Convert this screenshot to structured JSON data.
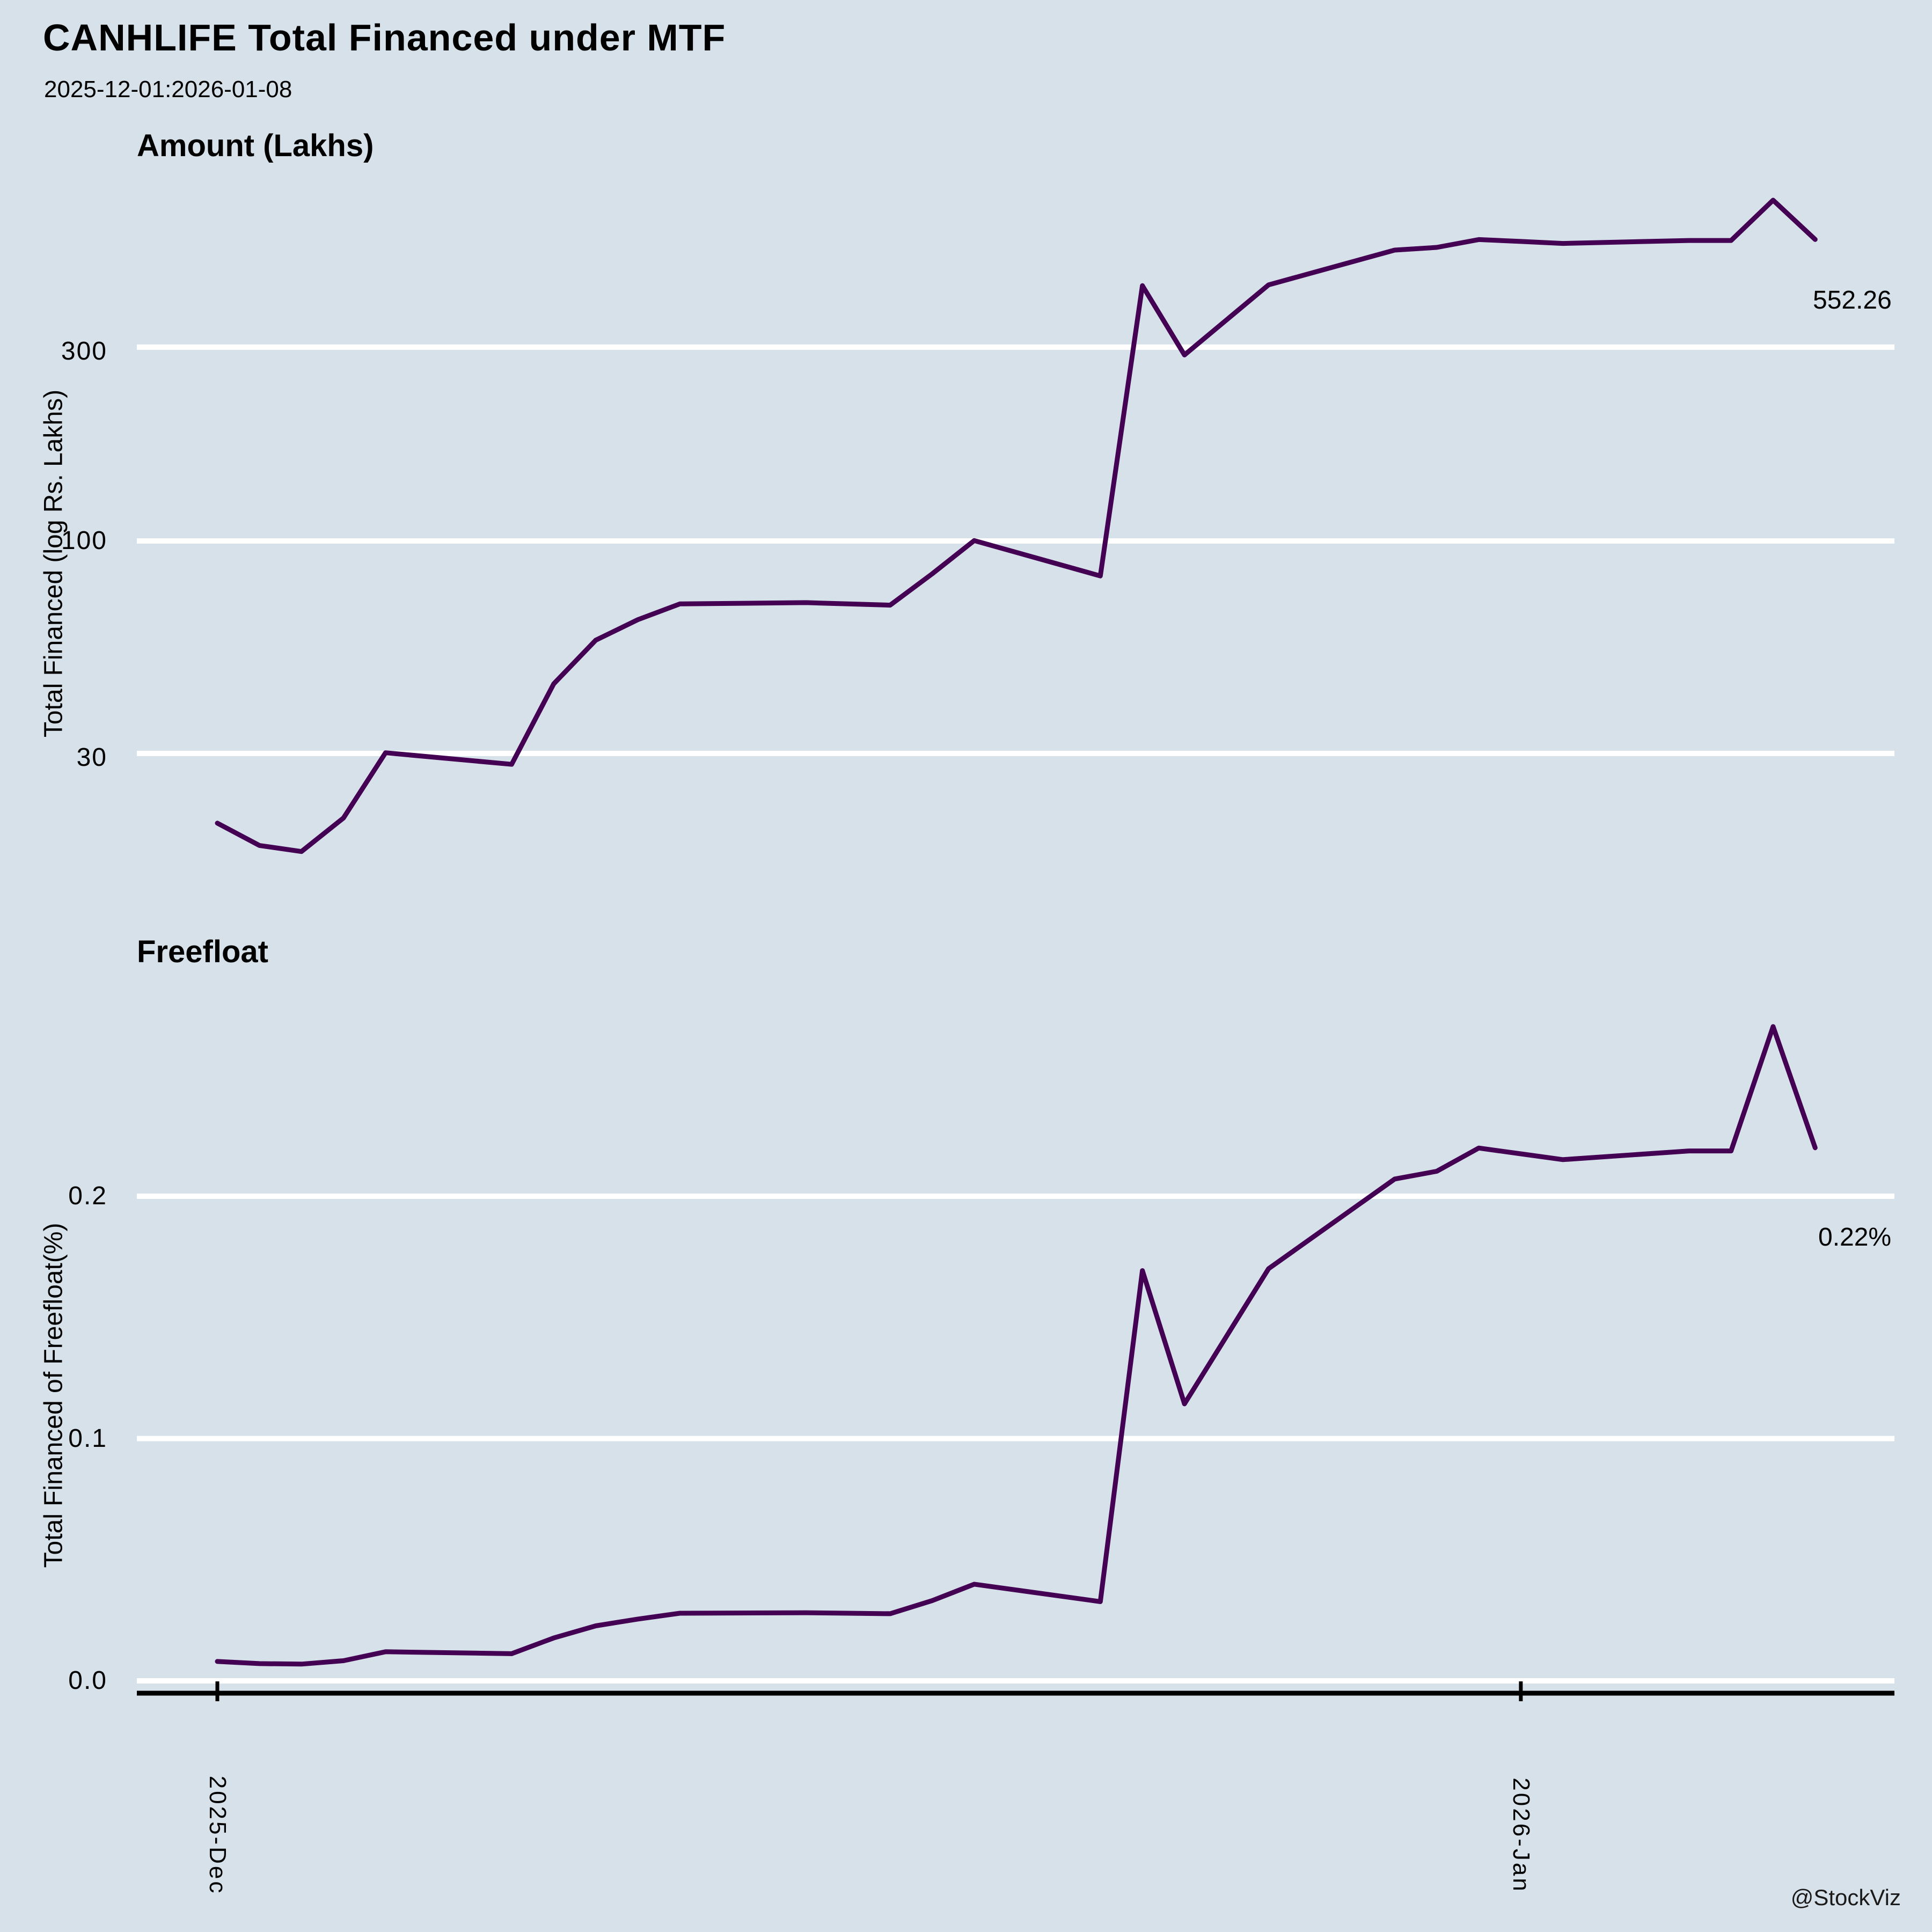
{
  "header": {
    "title": "CANHLIFE Total Financed under MTF",
    "subtitle": "2025-12-01:2026-01-08"
  },
  "watermark": "@StockViz",
  "colors": {
    "background": "#d7e1e9",
    "line": "#440154",
    "gridline": "#ffffff",
    "axis": "#000000"
  },
  "x_axis": {
    "ticks": [
      {
        "label": "2025-Dec",
        "date": "2025-12-01"
      },
      {
        "label": "2026-Jan",
        "date": "2026-01-01"
      }
    ]
  },
  "chart_data": [
    {
      "type": "line",
      "title": "Amount (Lakhs)",
      "ylabel": "Total Financed (log Rs. Lakhs)",
      "yscale": "log",
      "yticks": [
        300,
        100,
        30
      ],
      "ytick_labels": [
        "300",
        "100",
        "30"
      ],
      "end_label": "552.26",
      "legend": "none",
      "grid": "horizontal-white",
      "dates": [
        "2025-12-01",
        "2025-12-02",
        "2025-12-03",
        "2025-12-04",
        "2025-12-05",
        "2025-12-08",
        "2025-12-09",
        "2025-12-10",
        "2025-12-11",
        "2025-12-12",
        "2025-12-15",
        "2025-12-16",
        "2025-12-17",
        "2025-12-18",
        "2025-12-19",
        "2025-12-22",
        "2025-12-23",
        "2025-12-24",
        "2025-12-26",
        "2025-12-29",
        "2025-12-30",
        "2025-12-31",
        "2026-01-01",
        "2026-01-02",
        "2026-01-05",
        "2026-01-06",
        "2026-01-07",
        "2026-01-08"
      ],
      "values": [
        20.2,
        17.8,
        17.2,
        20.8,
        30.1,
        28.2,
        44.5,
        57.0,
        64.0,
        70.0,
        70.5,
        70.0,
        69.5,
        83.0,
        100.2,
        82.0,
        425.0,
        287.0,
        427.0,
        520.0,
        528.0,
        552.0,
        546.0,
        540.0,
        549.0,
        549.0,
        690.0,
        552.26
      ]
    },
    {
      "type": "line",
      "title": "Freefloat",
      "ylabel": "Total Financed of Freefloat(%)",
      "yscale": "linear",
      "yticks": [
        0.2,
        0.1,
        0.0
      ],
      "ytick_labels": [
        "0.2",
        "0.1",
        "0.0"
      ],
      "end_label": "0.22%",
      "legend": "none",
      "grid": "horizontal-white",
      "dates": [
        "2025-12-01",
        "2025-12-02",
        "2025-12-03",
        "2025-12-04",
        "2025-12-05",
        "2025-12-08",
        "2025-12-09",
        "2025-12-10",
        "2025-12-11",
        "2025-12-12",
        "2025-12-15",
        "2025-12-16",
        "2025-12-17",
        "2025-12-18",
        "2025-12-19",
        "2025-12-22",
        "2025-12-23",
        "2025-12-24",
        "2025-12-26",
        "2025-12-29",
        "2025-12-30",
        "2025-12-31",
        "2026-01-01",
        "2026-01-02",
        "2026-01-05",
        "2026-01-06",
        "2026-01-07",
        "2026-01-08"
      ],
      "values": [
        0.008,
        0.0071,
        0.0069,
        0.0083,
        0.012,
        0.0112,
        0.0177,
        0.0227,
        0.0255,
        0.0279,
        0.0281,
        0.0279,
        0.0277,
        0.0331,
        0.0399,
        0.0327,
        0.1693,
        0.1143,
        0.1701,
        0.2071,
        0.2103,
        0.2199,
        0.2175,
        0.2151,
        0.2187,
        0.2187,
        0.27,
        0.22
      ]
    }
  ]
}
